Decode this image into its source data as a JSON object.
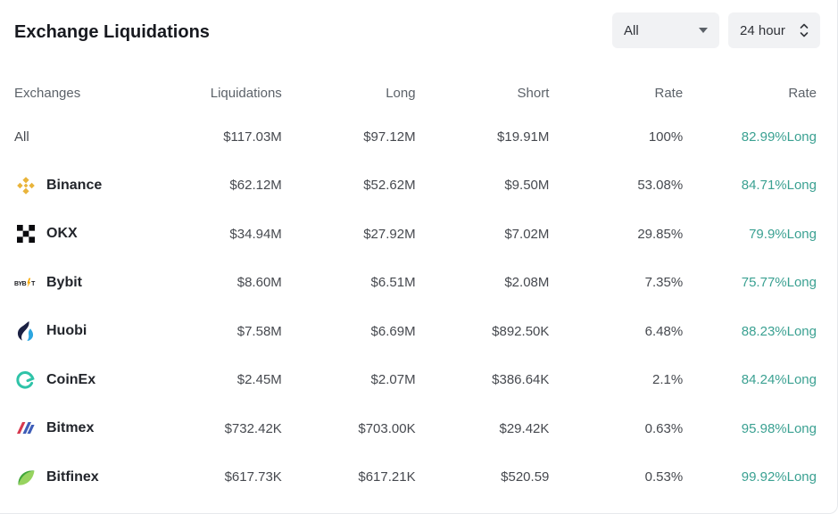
{
  "widget": {
    "title": "Exchange Liquidations"
  },
  "controls": {
    "filter_dropdown": {
      "value": "All",
      "icon": "caret-down-icon"
    },
    "time_dropdown": {
      "value": "24 hour",
      "icon": "spinner-chevrons-icon"
    }
  },
  "table": {
    "columns": [
      "Exchanges",
      "Liquidations",
      "Long",
      "Short",
      "Rate",
      "Rate"
    ],
    "rows": [
      {
        "exchange": "All",
        "icon": "none",
        "liquidations": "$117.03M",
        "long": "$97.12M",
        "short": "$19.91M",
        "rate": "100%",
        "long_rate": "82.99%Long"
      },
      {
        "exchange": "Binance",
        "icon": "binance-icon",
        "liquidations": "$62.12M",
        "long": "$52.62M",
        "short": "$9.50M",
        "rate": "53.08%",
        "long_rate": "84.71%Long"
      },
      {
        "exchange": "OKX",
        "icon": "okx-icon",
        "liquidations": "$34.94M",
        "long": "$27.92M",
        "short": "$7.02M",
        "rate": "29.85%",
        "long_rate": "79.9%Long"
      },
      {
        "exchange": "Bybit",
        "icon": "bybit-icon",
        "liquidations": "$8.60M",
        "long": "$6.51M",
        "short": "$2.08M",
        "rate": "7.35%",
        "long_rate": "75.77%Long"
      },
      {
        "exchange": "Huobi",
        "icon": "huobi-icon",
        "liquidations": "$7.58M",
        "long": "$6.69M",
        "short": "$892.50K",
        "rate": "6.48%",
        "long_rate": "88.23%Long"
      },
      {
        "exchange": "CoinEx",
        "icon": "coinex-icon",
        "liquidations": "$2.45M",
        "long": "$2.07M",
        "short": "$386.64K",
        "rate": "2.1%",
        "long_rate": "84.24%Long"
      },
      {
        "exchange": "Bitmex",
        "icon": "bitmex-icon",
        "liquidations": "$732.42K",
        "long": "$703.00K",
        "short": "$29.42K",
        "rate": "0.63%",
        "long_rate": "95.98%Long"
      },
      {
        "exchange": "Bitfinex",
        "icon": "bitfinex-icon",
        "liquidations": "$617.73K",
        "long": "$617.21K",
        "short": "$520.59",
        "rate": "0.53%",
        "long_rate": "99.92%Long"
      }
    ]
  },
  "colors": {
    "long_rate_text": "#3ba192",
    "dropdown_bg": "#f1f2f4",
    "binance_gold": "#e9b43b",
    "okx_black": "#0b0b0e",
    "huobi_navy": "#1b2143",
    "huobi_blue": "#2ca6e0",
    "coinex_teal": "#2fc3a8",
    "bitmex_red": "#d6384e",
    "bitmex_blue": "#3e5db8",
    "bitfinex_dark_green": "#41a63c",
    "bitfinex_light_green": "#97d35f",
    "bybit_gold": "#f7a600"
  }
}
